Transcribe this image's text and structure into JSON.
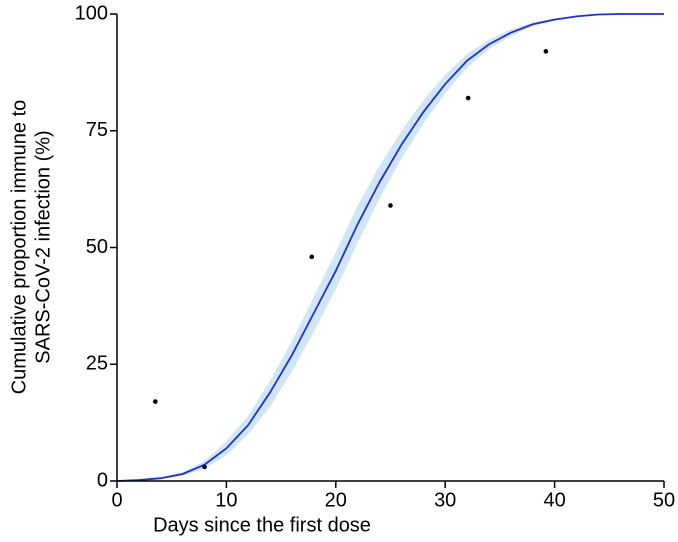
{
  "chart_data": {
    "type": "line",
    "x_label": "Days since the first dose",
    "y_label": [
      "Cumulative proportion immune to",
      "SARS-CoV-2 infection (%)"
    ],
    "x": [
      0,
      2,
      4,
      6,
      8,
      10,
      12,
      14,
      16,
      18,
      20,
      22,
      24,
      26,
      28,
      30,
      32,
      34,
      36,
      38,
      40,
      42,
      44,
      46,
      48,
      50
    ],
    "line": {
      "color": "#1f2fd6",
      "values": [
        0,
        0.2,
        0.6,
        1.5,
        3.5,
        7,
        12,
        19,
        27,
        36,
        45,
        55,
        64,
        72,
        79,
        85,
        90,
        93.5,
        96,
        97.8,
        98.8,
        99.5,
        99.9,
        100,
        100,
        100
      ]
    },
    "band": {
      "color": "#cfe6f7",
      "lower": [
        0,
        0.1,
        0.4,
        1.1,
        2.6,
        5.5,
        10,
        16,
        23.5,
        32,
        41,
        51,
        60.5,
        69,
        76.5,
        83,
        88.5,
        92.5,
        95.3,
        97.4,
        98.6,
        99.4,
        99.8,
        100,
        100,
        100
      ],
      "upper": [
        0,
        0.3,
        0.8,
        1.9,
        4.3,
        8.5,
        14,
        21.5,
        30,
        39.5,
        49,
        59,
        67.5,
        75,
        81.5,
        87,
        91.5,
        94.5,
        96.7,
        98.2,
        99.1,
        99.6,
        99.9,
        100,
        100,
        100
      ]
    },
    "points": {
      "color": "#000000",
      "x": [
        3.5,
        8,
        17.8,
        25,
        32.1,
        39.2
      ],
      "y": [
        17,
        3,
        48,
        59,
        82,
        92
      ]
    },
    "xlim": [
      0,
      50
    ],
    "ylim": [
      0,
      100
    ],
    "xticks": [
      0,
      10,
      20,
      30,
      40,
      50
    ],
    "yticks": [
      0,
      25,
      50,
      75,
      100
    ]
  }
}
